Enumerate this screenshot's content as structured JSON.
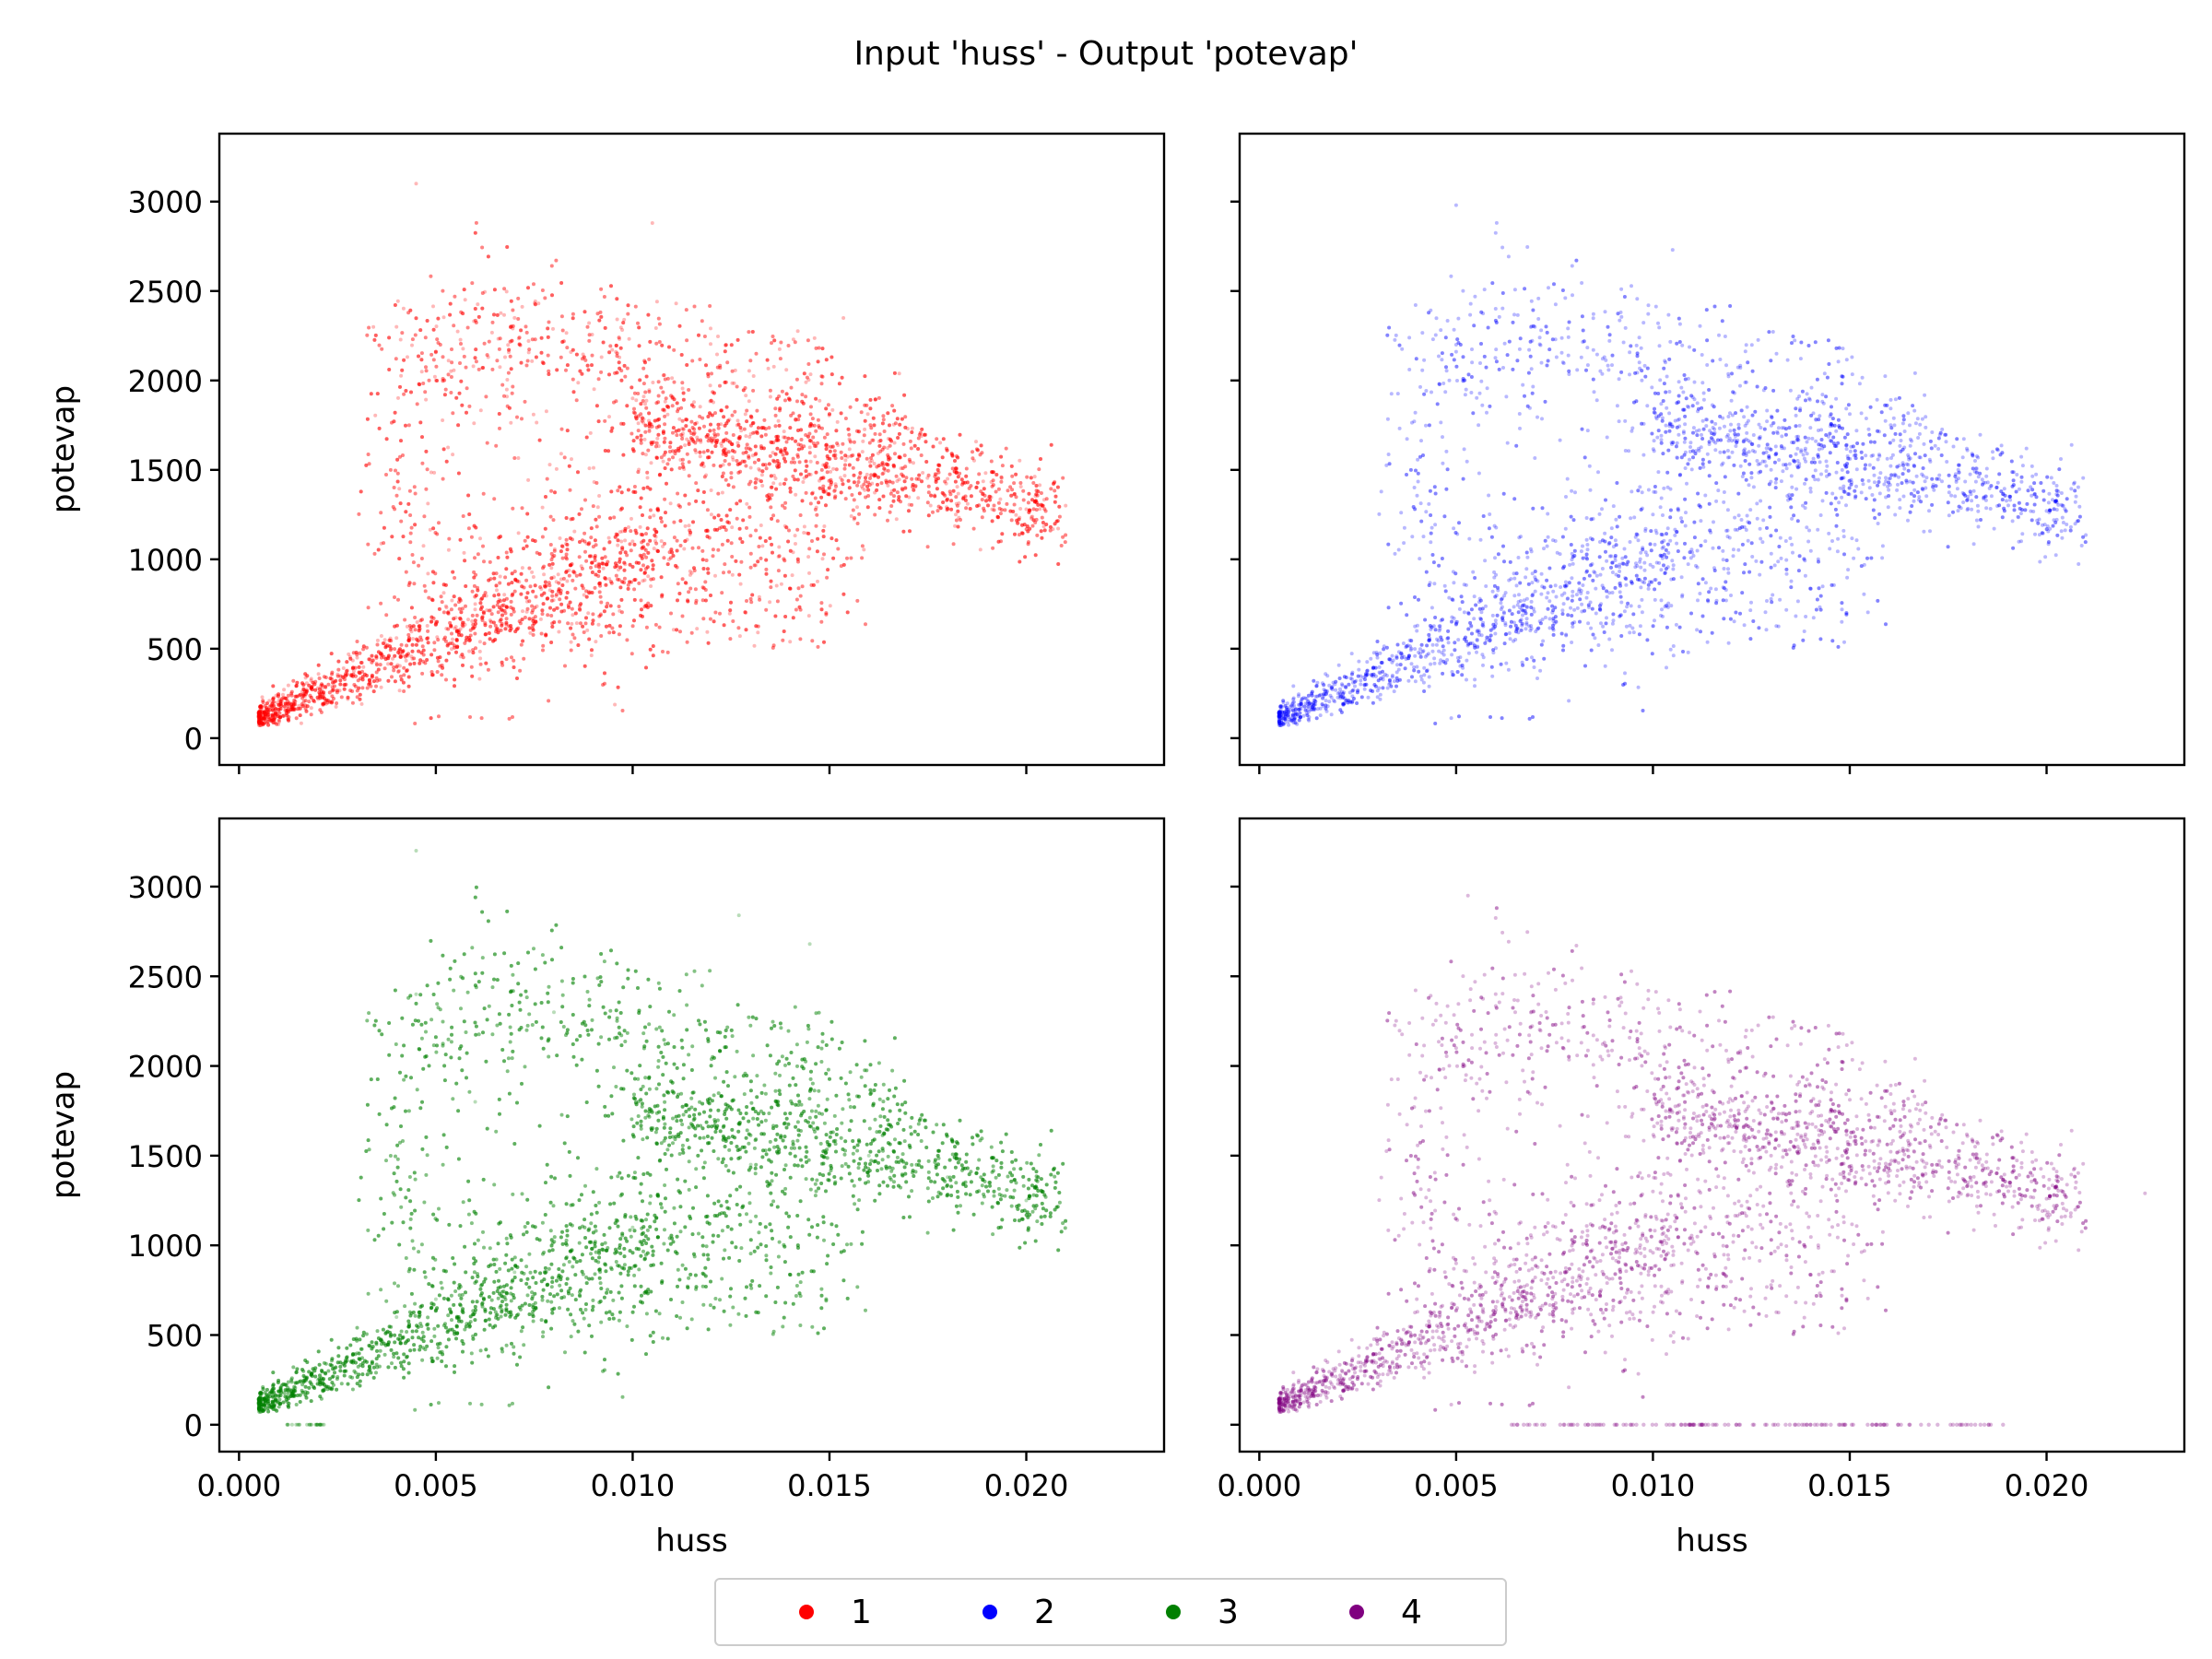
{
  "title": "Input 'huss' - Output 'potevap'",
  "legend": {
    "placement": "bottom-center",
    "items": [
      {
        "label": "1",
        "color": "#ff0000"
      },
      {
        "label": "2",
        "color": "#0000ff"
      },
      {
        "label": "3",
        "color": "#008000"
      },
      {
        "label": "4",
        "color": "#800080"
      }
    ]
  },
  "chart_data": [
    {
      "type": "scatter",
      "series": "1",
      "color": "#ff0000",
      "xlabel": "",
      "ylabel": "potevap",
      "xlim": [
        -0.0005,
        0.0235
      ],
      "ylim": [
        -150,
        3380
      ],
      "xticks": [
        "0.000",
        "0.005",
        "0.010",
        "0.015",
        "0.020"
      ],
      "yticks": [
        "0",
        "500",
        "1000",
        "1500",
        "2000",
        "2500",
        "3000"
      ],
      "approx_points": [
        [
          0.0006,
          80
        ],
        [
          0.001,
          150
        ],
        [
          0.002,
          280
        ],
        [
          0.003,
          450
        ],
        [
          0.004,
          560
        ],
        [
          0.005,
          650
        ],
        [
          0.006,
          750
        ],
        [
          0.008,
          900
        ],
        [
          0.01,
          1100
        ],
        [
          0.012,
          1250
        ],
        [
          0.015,
          1400
        ],
        [
          0.018,
          1450
        ],
        [
          0.02,
          1280
        ],
        [
          0.004,
          2300
        ],
        [
          0.005,
          2000
        ],
        [
          0.007,
          2350
        ],
        [
          0.01,
          1900
        ],
        [
          0.013,
          1700
        ],
        [
          0.0045,
          3100
        ],
        [
          0.0105,
          2880
        ],
        [
          0.021,
          1300
        ]
      ]
    },
    {
      "type": "scatter",
      "series": "2",
      "color": "#0000ff",
      "xlabel": "",
      "ylabel": "",
      "xlim": [
        -0.0005,
        0.0235
      ],
      "ylim": [
        -150,
        3380
      ],
      "approx_points": [
        [
          0.0006,
          80
        ],
        [
          0.002,
          250
        ],
        [
          0.003,
          450
        ],
        [
          0.004,
          600
        ],
        [
          0.005,
          650
        ],
        [
          0.007,
          900
        ],
        [
          0.01,
          1250
        ],
        [
          0.013,
          1500
        ],
        [
          0.016,
          1450
        ],
        [
          0.018,
          1350
        ],
        [
          0.02,
          1270
        ],
        [
          0.005,
          2200
        ],
        [
          0.007,
          2300
        ],
        [
          0.0145,
          1800
        ],
        [
          0.005,
          2980
        ],
        [
          0.0105,
          2730
        ]
      ]
    },
    {
      "type": "scatter",
      "series": "3",
      "color": "#008000",
      "xlabel": "huss",
      "ylabel": "potevap",
      "xlim": [
        -0.0005,
        0.0235
      ],
      "ylim": [
        -150,
        3380
      ],
      "xticks": [
        "0.000",
        "0.005",
        "0.010",
        "0.015",
        "0.020"
      ],
      "yticks": [
        "0",
        "500",
        "1000",
        "1500",
        "2000",
        "2500",
        "3000"
      ],
      "approx_points": [
        [
          0.0006,
          80
        ],
        [
          0.002,
          250
        ],
        [
          0.003,
          400
        ],
        [
          0.004,
          600
        ],
        [
          0.005,
          700
        ],
        [
          0.007,
          850
        ],
        [
          0.01,
          1100
        ],
        [
          0.013,
          1450
        ],
        [
          0.016,
          1500
        ],
        [
          0.018,
          1380
        ],
        [
          0.02,
          1250
        ],
        [
          0.0045,
          2400
        ],
        [
          0.006,
          1800
        ],
        [
          0.008,
          2300
        ],
        [
          0.0045,
          3200
        ],
        [
          0.0127,
          2840
        ],
        [
          0.0145,
          2680
        ]
      ]
    },
    {
      "type": "scatter",
      "series": "4",
      "color": "#800080",
      "xlabel": "huss",
      "ylabel": "",
      "xlim": [
        -0.0005,
        0.0235
      ],
      "ylim": [
        -150,
        3380
      ],
      "xticks": [
        "0.000",
        "0.005",
        "0.010",
        "0.015",
        "0.020"
      ],
      "approx_points": [
        [
          0.0006,
          80
        ],
        [
          0.002,
          250
        ],
        [
          0.003,
          450
        ],
        [
          0.004,
          700
        ],
        [
          0.005,
          900
        ],
        [
          0.007,
          1100
        ],
        [
          0.01,
          1300
        ],
        [
          0.013,
          1500
        ],
        [
          0.016,
          1450
        ],
        [
          0.018,
          1350
        ],
        [
          0.02,
          1260
        ],
        [
          0.005,
          2100
        ],
        [
          0.0065,
          2300
        ],
        [
          0.0053,
          2950
        ],
        [
          0.0225,
          1290
        ],
        [
          0.007,
          0
        ],
        [
          0.014,
          0
        ],
        [
          0.018,
          0
        ]
      ]
    }
  ]
}
